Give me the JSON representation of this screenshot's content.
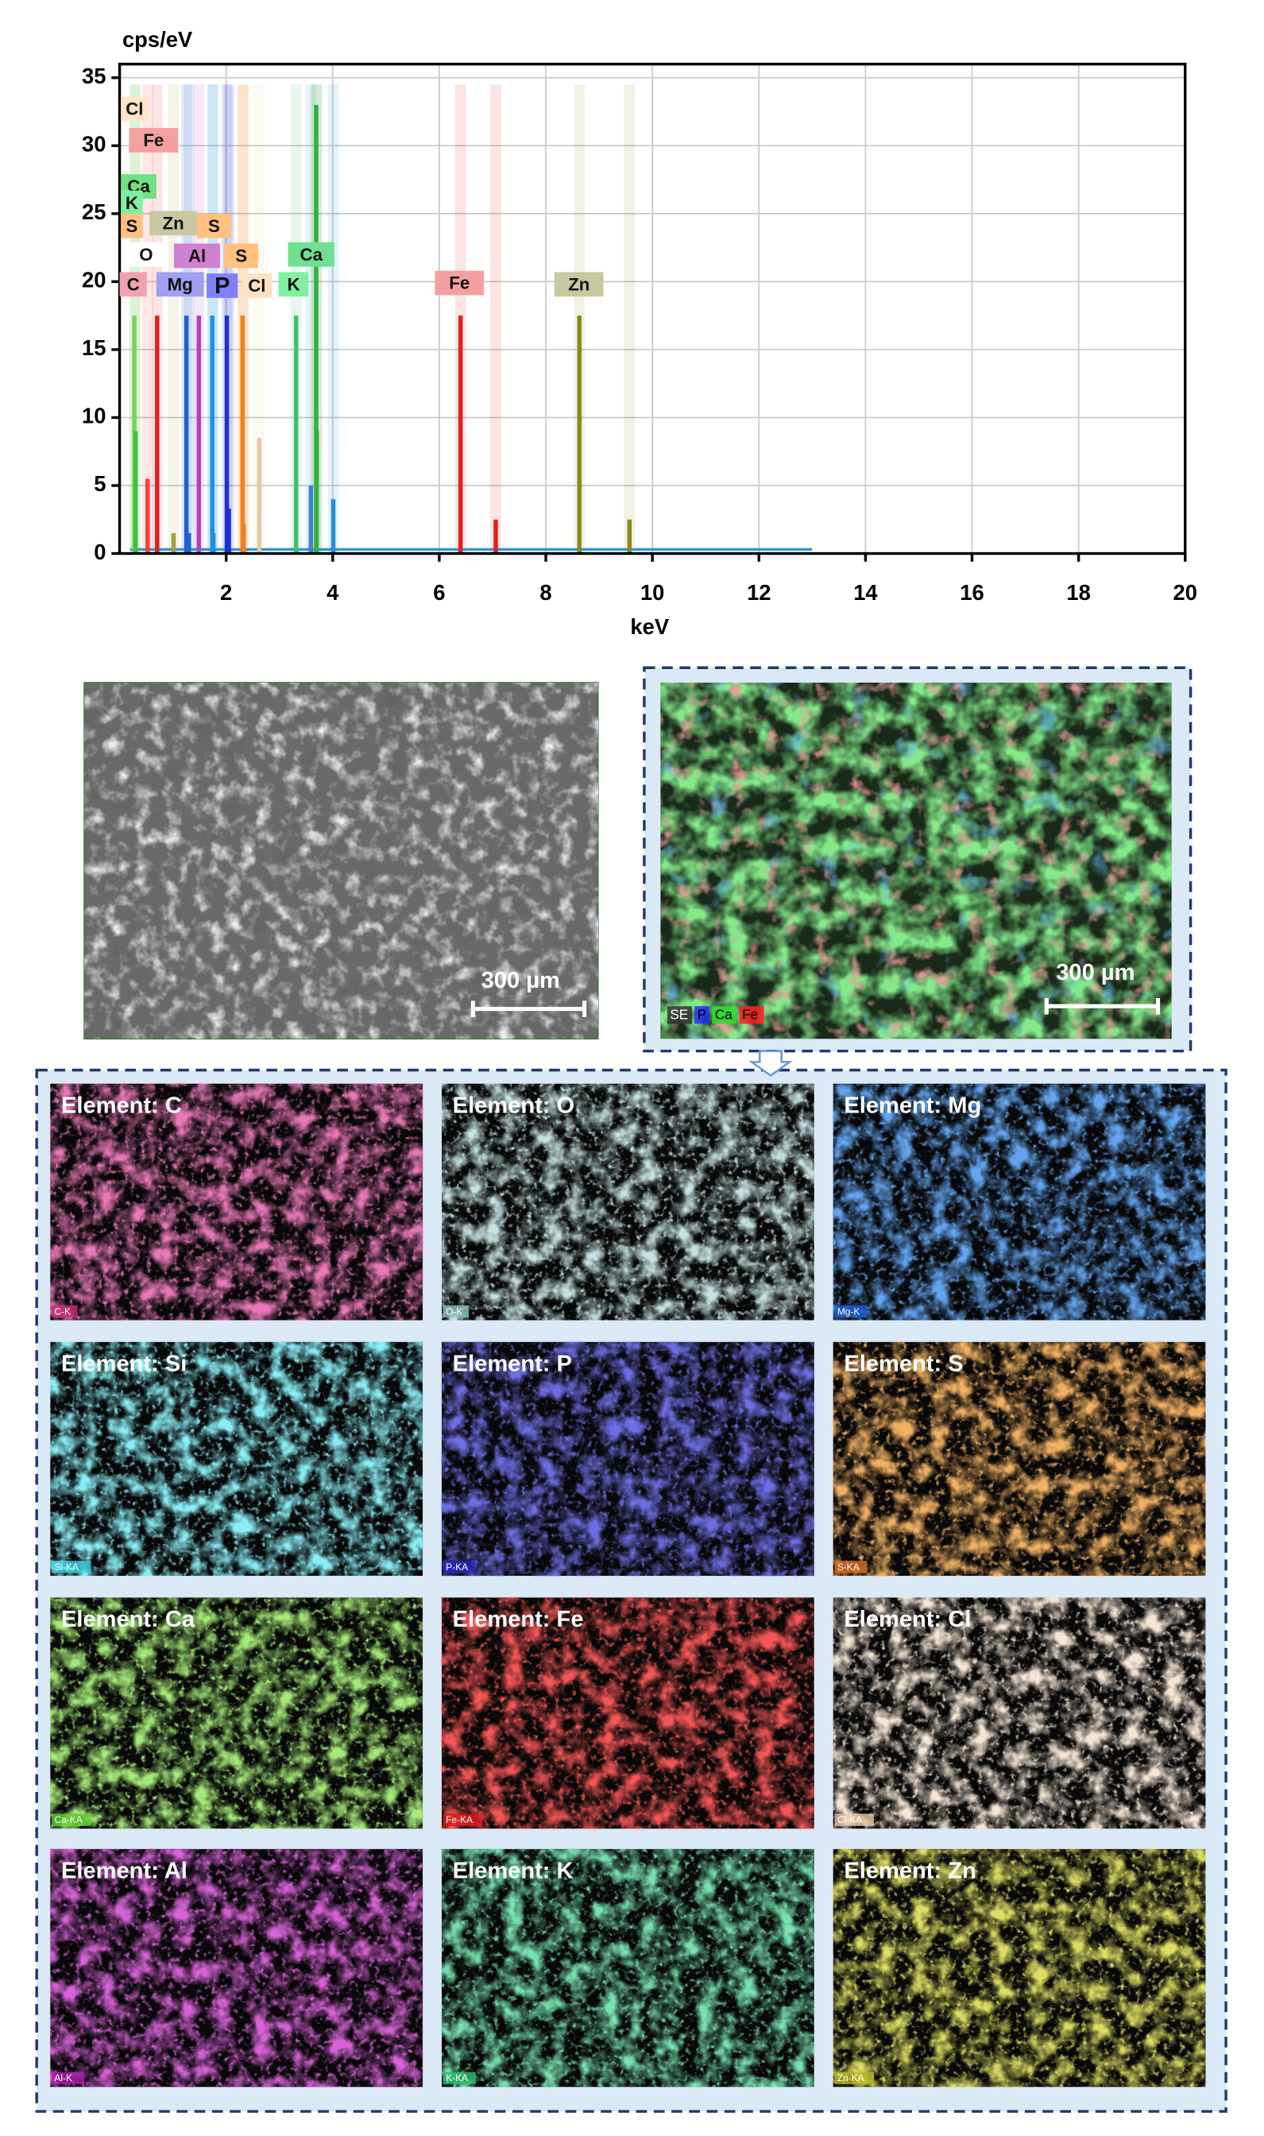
{
  "chart_data": {
    "type": "spectrum",
    "y_label": "cps/eV",
    "x_label": "keV",
    "xlim": [
      0,
      20
    ],
    "xticks": [
      2,
      4,
      6,
      8,
      10,
      12,
      14,
      16,
      18,
      20
    ],
    "ylim": [
      0,
      36
    ],
    "yticks": [
      0,
      5,
      10,
      15,
      20,
      25,
      30,
      35
    ],
    "grid": true,
    "peaks": {
      "x": [
        0.277,
        0.3,
        0.525,
        0.705,
        1.012,
        1.254,
        1.3,
        1.487,
        1.74,
        1.76,
        2.013,
        2.05,
        2.308,
        2.33,
        2.622,
        3.313,
        3.59,
        3.69,
        3.7,
        4.01,
        6.4,
        7.06,
        8.63,
        9.57
      ],
      "values": [
        17.5,
        9,
        5.5,
        17.5,
        1.5,
        17.5,
        1.5,
        17.5,
        17.5,
        1.5,
        17.5,
        3.3,
        17.5,
        2.2,
        8.5,
        17.5,
        5,
        33,
        9,
        4,
        17.5,
        2.5,
        17.5,
        2.5
      ],
      "colors": [
        "#7ad35a",
        "#3fbf3f",
        "#ff3b3b",
        "#e02020",
        "#a0a040",
        "#1f5fd0",
        "#1f5fd0",
        "#b040c0",
        "#2090e0",
        "#2090e0",
        "#2030d0",
        "#2030d0",
        "#f08020",
        "#f08020",
        "#e8c8a0",
        "#40c070",
        "#4080d0",
        "#30b040",
        "#30b040",
        "#2090e0",
        "#e02020",
        "#e02020",
        "#8a8a20",
        "#8a8a20"
      ]
    },
    "peak_labels": [
      {
        "label": "Cl",
        "color": "#ffe4c8"
      },
      {
        "label": "Fe",
        "color": "#f4a0a0"
      },
      {
        "label": "Ca",
        "color": "#70e080"
      },
      {
        "label": "K",
        "color": "#80f0a0"
      },
      {
        "label": "S",
        "color": "#ffc080"
      },
      {
        "label": "Zn",
        "color": "#c8c8a0"
      },
      {
        "label": "S",
        "color": "#ffc080"
      },
      {
        "label": "O",
        "color": "#ffffff"
      },
      {
        "label": "Al",
        "color": "#d080d0"
      },
      {
        "label": "S",
        "color": "#ffc080"
      },
      {
        "label": "Ca",
        "color": "#70e090"
      },
      {
        "label": "C",
        "color": "#f0a0b0"
      },
      {
        "label": "Mg",
        "color": "#a0a0f0"
      },
      {
        "label": "P",
        "color": "#8080ff"
      },
      {
        "label": "Cl",
        "color": "#ffe0c0"
      },
      {
        "label": "K",
        "color": "#80f0a0"
      },
      {
        "label": "Fe",
        "color": "#f4a0a0"
      },
      {
        "label": "Zn",
        "color": "#c8c8a0"
      }
    ]
  },
  "sem_image": {
    "scale_bar": "300 µm"
  },
  "composite_map": {
    "scale_bar": "300 µm",
    "legend": [
      {
        "label": "SE",
        "color": "#ffffff"
      },
      {
        "label": "P",
        "color": "#2030ff"
      },
      {
        "label": "Ca",
        "color": "#30e030"
      },
      {
        "label": "Fe",
        "color": "#ff2020"
      }
    ]
  },
  "element_maps": [
    {
      "title": "Element: C",
      "tag": "C-K",
      "color": "#d0307a"
    },
    {
      "title": "Element: O",
      "tag": "O-K",
      "color": "#8fc0c0"
    },
    {
      "title": "Element: Mg",
      "tag": "Mg-K",
      "color": "#2060e0"
    },
    {
      "title": "Element: Si",
      "tag": "Si-KA",
      "color": "#40d8e8"
    },
    {
      "title": "Element: P",
      "tag": "P-KA",
      "color": "#2828c8"
    },
    {
      "title": "Element: S",
      "tag": "S-KA",
      "color": "#e07020"
    },
    {
      "title": "Element: Ca",
      "tag": "Ca-KA",
      "color": "#60d030"
    },
    {
      "title": "Element: Fe",
      "tag": "Fe-KA",
      "color": "#e81818"
    },
    {
      "title": "Element: Cl",
      "tag": "Cl-KA",
      "color": "#e8c8a8"
    },
    {
      "title": "Element: Al",
      "tag": "Al-K",
      "color": "#b020b0"
    },
    {
      "title": "Element: K",
      "tag": "K-KA",
      "color": "#30c070"
    },
    {
      "title": "Element: Zn",
      "tag": "Zn-KA",
      "color": "#b8b820"
    }
  ]
}
